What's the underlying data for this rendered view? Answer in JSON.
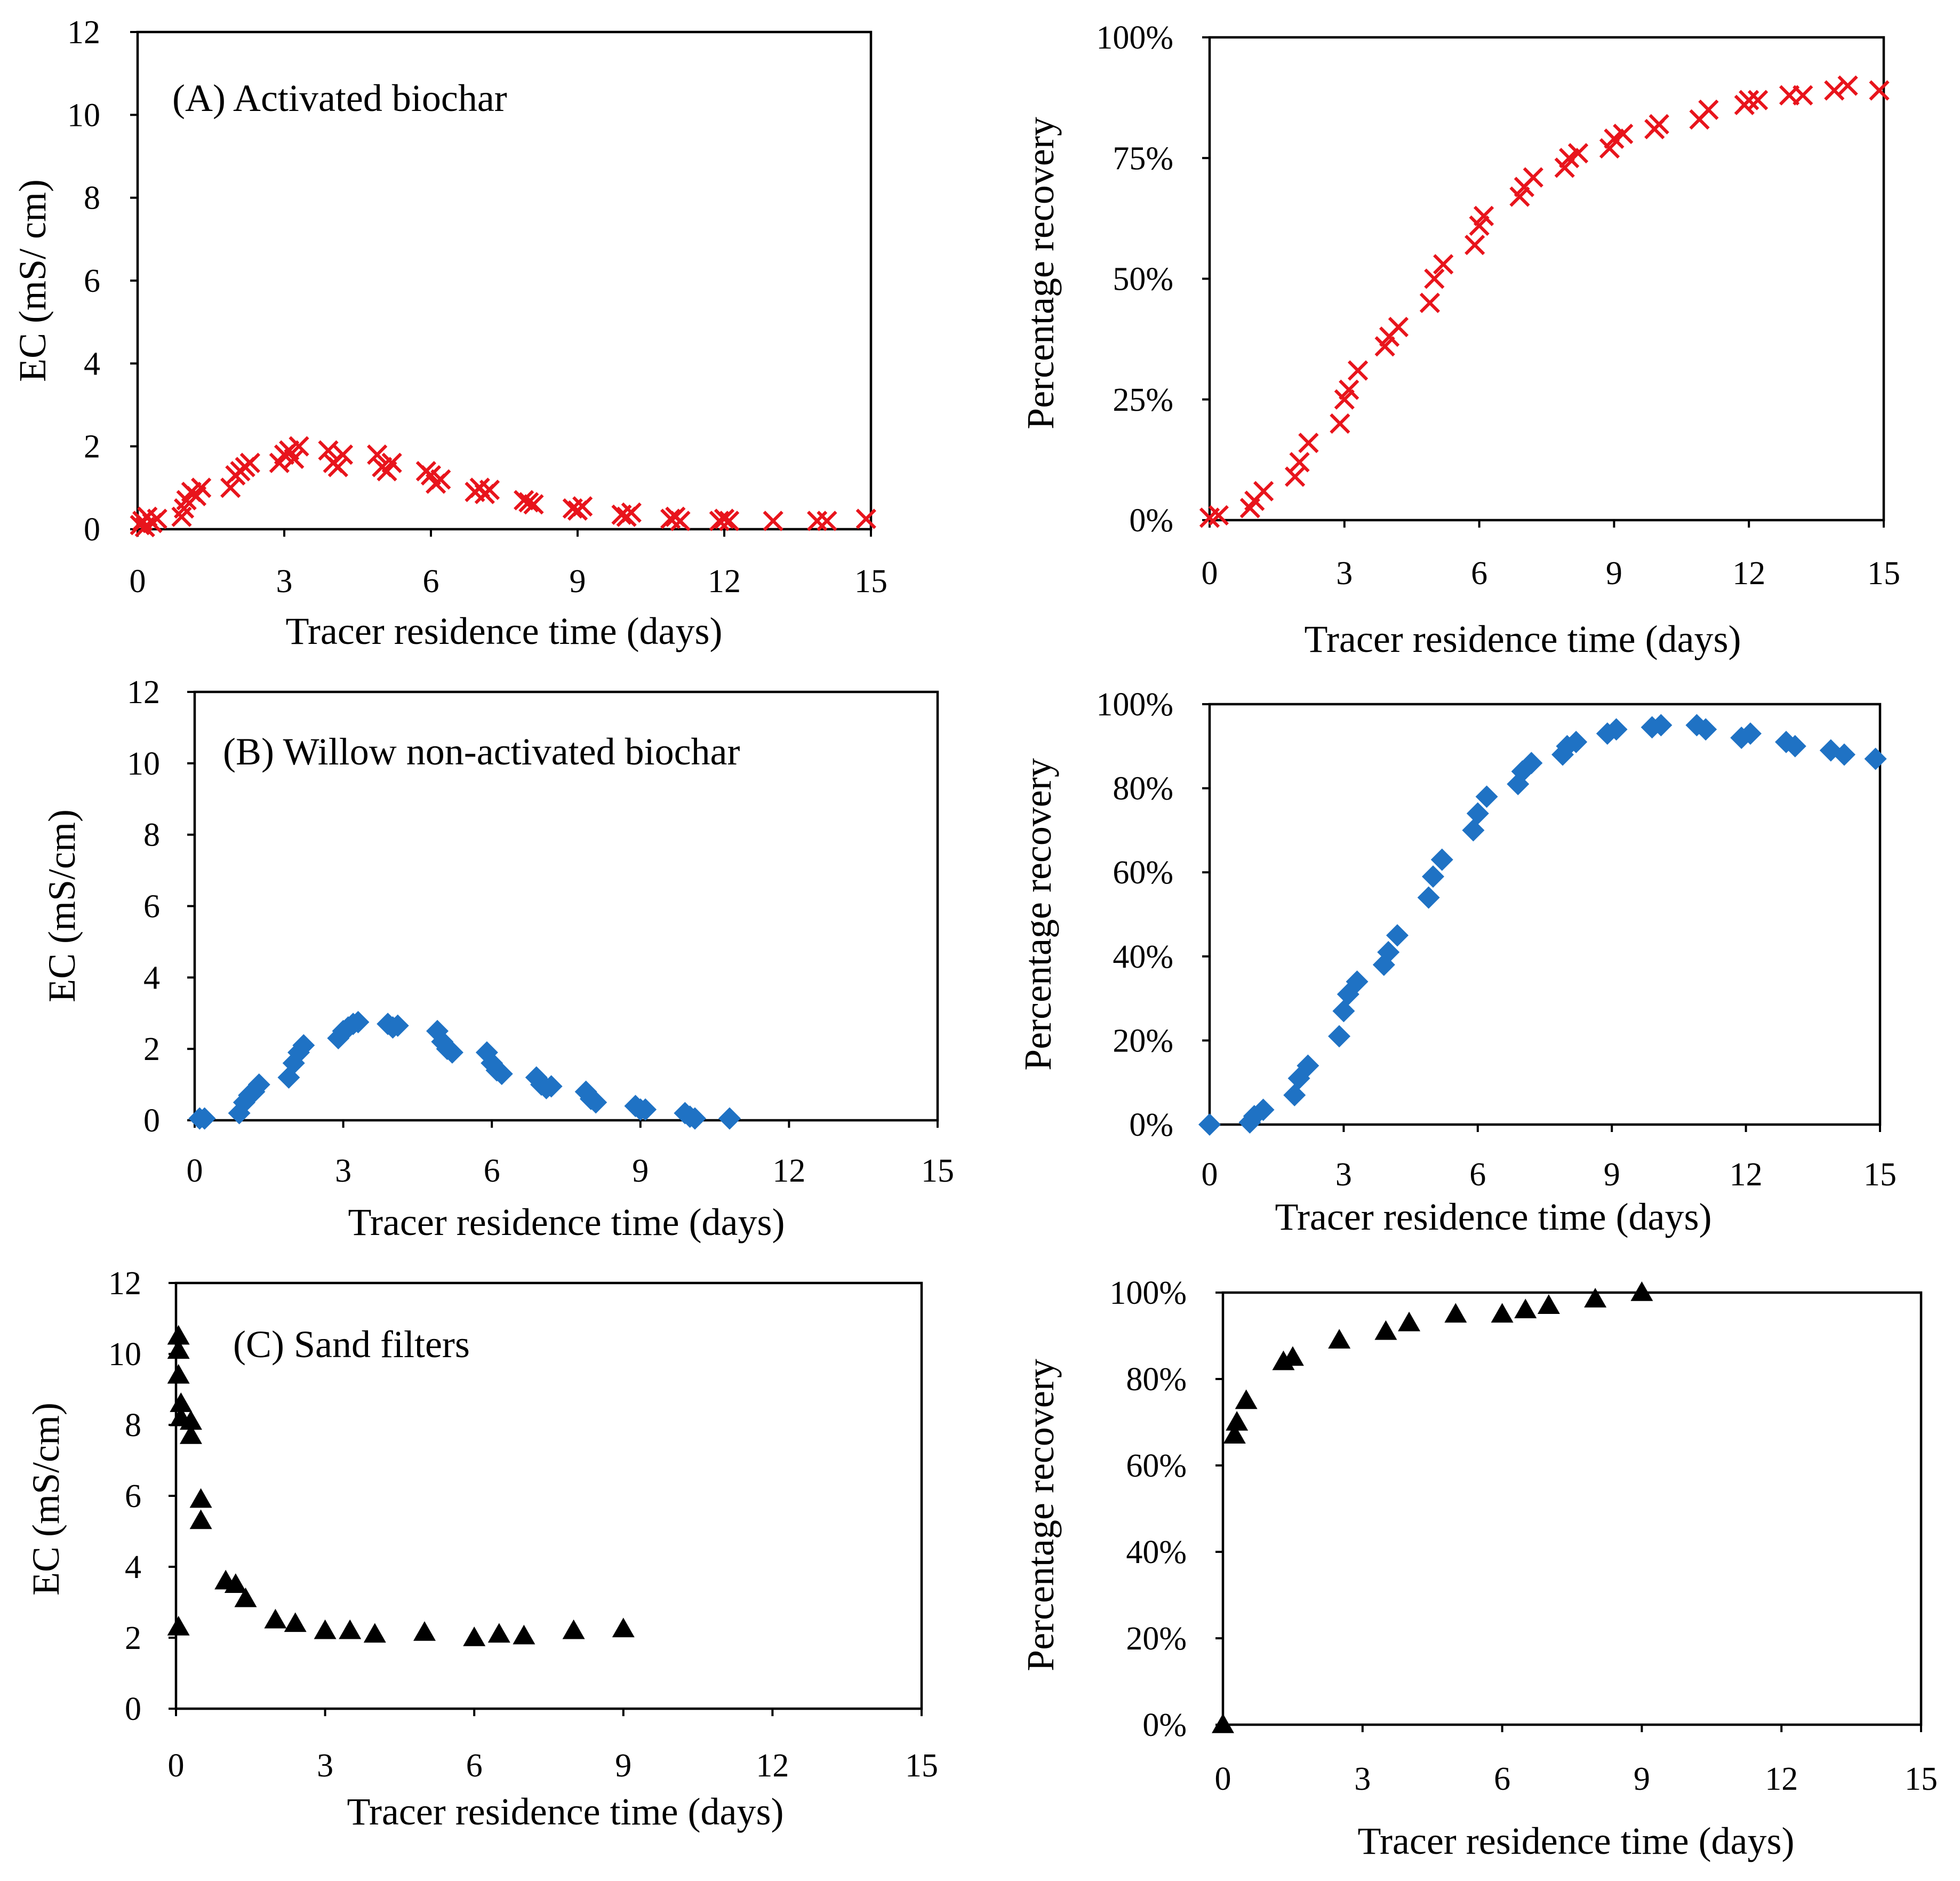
{
  "colors": {
    "red_x": "#e8141c",
    "blue_diamond": "#1f72c4",
    "black_triangle": "#000000"
  },
  "chart_data": [
    {
      "id": "A-ec",
      "type": "scatter",
      "marker": "x-icon",
      "color": "#e8141c",
      "title": "(A) Activated biochar",
      "xlabel": "Tracer residence time (days)",
      "ylabel": "EC (mS/ cm)",
      "xlim": [
        0,
        15
      ],
      "ylim": [
        0,
        12
      ],
      "xticks": [
        "0",
        "3",
        "6",
        "9",
        "12",
        "15"
      ],
      "yticks": [
        "0",
        "2",
        "4",
        "6",
        "8",
        "10",
        "12"
      ],
      "x": [
        0.05,
        0.1,
        0.15,
        0.2,
        0.3,
        0.4,
        0.9,
        0.95,
        1.0,
        1.1,
        1.2,
        1.3,
        1.9,
        2.0,
        2.1,
        2.2,
        2.3,
        2.9,
        3.0,
        3.1,
        3.2,
        3.3,
        3.9,
        4.0,
        4.1,
        4.2,
        4.9,
        5.0,
        5.1,
        5.2,
        5.9,
        6.0,
        6.1,
        6.2,
        6.9,
        7.0,
        7.1,
        7.2,
        7.9,
        8.0,
        8.1,
        8.9,
        9.0,
        9.1,
        9.9,
        10.0,
        10.1,
        10.9,
        11.0,
        11.1,
        11.9,
        12.0,
        12.1,
        13.0,
        13.9,
        14.1,
        14.9
      ],
      "y": [
        0.1,
        0.2,
        0.05,
        0.3,
        0.15,
        0.25,
        0.3,
        0.5,
        0.7,
        0.9,
        0.8,
        1.0,
        1.0,
        1.3,
        1.4,
        1.5,
        1.6,
        1.6,
        1.8,
        1.9,
        1.7,
        2.0,
        1.9,
        1.6,
        1.5,
        1.8,
        1.8,
        1.5,
        1.4,
        1.6,
        1.4,
        1.3,
        1.1,
        1.2,
        0.9,
        1.0,
        0.85,
        0.95,
        0.7,
        0.65,
        0.6,
        0.5,
        0.45,
        0.55,
        0.35,
        0.3,
        0.4,
        0.25,
        0.3,
        0.2,
        0.2,
        0.25,
        0.2,
        0.2,
        0.2,
        0.2,
        0.25
      ]
    },
    {
      "id": "A-rec",
      "type": "scatter",
      "marker": "x-icon",
      "color": "#e8141c",
      "title": "",
      "xlabel": "Tracer residence time (days)",
      "ylabel": "Percentage recovery",
      "xlim": [
        0,
        15
      ],
      "ylim": [
        0,
        100
      ],
      "xticks": [
        "0",
        "3",
        "6",
        "9",
        "12",
        "15"
      ],
      "yticks": [
        "0%",
        "25%",
        "50%",
        "75%",
        "100%"
      ],
      "x": [
        0,
        0.2,
        0.9,
        1.0,
        1.2,
        1.9,
        2.0,
        2.2,
        2.9,
        3.0,
        3.1,
        3.3,
        3.9,
        4.0,
        4.2,
        4.9,
        5.0,
        5.2,
        5.9,
        6.0,
        6.1,
        6.9,
        7.0,
        7.2,
        7.9,
        8.0,
        8.2,
        8.9,
        9.0,
        9.2,
        9.9,
        10.0,
        10.9,
        11.1,
        11.9,
        12.0,
        12.2,
        12.9,
        13.2,
        13.9,
        14.2,
        14.9
      ],
      "y": [
        0.5,
        1,
        2.5,
        4,
        6,
        9,
        12,
        16,
        20,
        25,
        27,
        31,
        36,
        38,
        40,
        45,
        50,
        53,
        57,
        61,
        63,
        67,
        69,
        71,
        73,
        75,
        76,
        77,
        79,
        80,
        81,
        82,
        83,
        85,
        86,
        87,
        87,
        88,
        88,
        89,
        90,
        89
      ]
    },
    {
      "id": "B-ec",
      "type": "scatter",
      "marker": "diamond-icon",
      "color": "#1f72c4",
      "title": "(B) Willow non-activated biochar",
      "xlabel": "Tracer residence time (days)",
      "ylabel": "EC (mS/cm)",
      "xlim": [
        0,
        15
      ],
      "ylim": [
        0,
        12
      ],
      "xticks": [
        "0",
        "3",
        "6",
        "9",
        "12",
        "15"
      ],
      "yticks": [
        "0",
        "2",
        "4",
        "6",
        "8",
        "10",
        "12"
      ],
      "x": [
        0.1,
        0.2,
        0.9,
        1.0,
        1.1,
        1.2,
        1.3,
        1.9,
        2.0,
        2.1,
        2.2,
        2.9,
        3.0,
        3.1,
        3.2,
        3.3,
        3.9,
        4.0,
        4.1,
        4.9,
        5.0,
        5.1,
        5.2,
        5.9,
        6.0,
        6.1,
        6.2,
        6.9,
        7.0,
        7.1,
        7.2,
        7.9,
        8.0,
        8.1,
        8.9,
        9.0,
        9.1,
        9.9,
        10.0,
        10.1,
        10.8
      ],
      "y": [
        0.05,
        0.05,
        0.2,
        0.5,
        0.7,
        0.8,
        1.0,
        1.2,
        1.6,
        1.9,
        2.1,
        2.3,
        2.5,
        2.6,
        2.7,
        2.75,
        2.7,
        2.6,
        2.65,
        2.5,
        2.2,
        2.0,
        1.9,
        1.9,
        1.6,
        1.4,
        1.3,
        1.2,
        1.0,
        0.9,
        0.95,
        0.8,
        0.6,
        0.5,
        0.4,
        0.3,
        0.3,
        0.2,
        0.1,
        0.05,
        0.05
      ]
    },
    {
      "id": "B-rec",
      "type": "scatter",
      "marker": "diamond-icon",
      "color": "#1f72c4",
      "title": "",
      "xlabel": "Tracer residence time (days)",
      "ylabel": "Percentage recovery",
      "xlim": [
        0,
        15
      ],
      "ylim": [
        0,
        100
      ],
      "xticks": [
        "0",
        "3",
        "6",
        "9",
        "12",
        "15"
      ],
      "yticks": [
        "0%",
        "20%",
        "40%",
        "60%",
        "80%",
        "100%"
      ],
      "x": [
        0,
        0.9,
        1.0,
        1.2,
        1.9,
        2.0,
        2.2,
        2.9,
        3.0,
        3.1,
        3.3,
        3.9,
        4.0,
        4.2,
        4.9,
        5.0,
        5.2,
        5.9,
        6.0,
        6.2,
        6.9,
        7.0,
        7.2,
        7.9,
        8.0,
        8.2,
        8.9,
        9.1,
        9.9,
        10.1,
        10.9,
        11.1,
        11.9,
        12.1,
        12.9,
        13.1,
        13.9,
        14.2,
        14.9
      ],
      "y": [
        0,
        0.5,
        2,
        3.5,
        7,
        11,
        14,
        21,
        27,
        31,
        34,
        38,
        41,
        45,
        54,
        59,
        63,
        70,
        74,
        78,
        81,
        84,
        86,
        88,
        90,
        91,
        93,
        94,
        94.5,
        95,
        95,
        94,
        92,
        93,
        91,
        90,
        89,
        88,
        87
      ]
    },
    {
      "id": "C-ec",
      "type": "scatter",
      "marker": "triangle-icon",
      "color": "#000000",
      "title": "(C) Sand filters",
      "xlabel": "Tracer residence time (days)",
      "ylabel": "EC (mS/cm)",
      "xlim": [
        0,
        15
      ],
      "ylim": [
        0,
        12
      ],
      "xticks": [
        "0",
        "3",
        "6",
        "9",
        "12",
        "15"
      ],
      "yticks": [
        "0",
        "2",
        "4",
        "6",
        "8",
        "10",
        "12"
      ],
      "x": [
        0.05,
        0.05,
        0.05,
        0.05,
        0.1,
        0.1,
        0.3,
        0.3,
        0.5,
        0.5,
        1.0,
        1.2,
        1.4,
        2.0,
        2.4,
        3.0,
        3.5,
        4.0,
        5.0,
        6.0,
        6.5,
        7.0,
        8.0,
        9.0
      ],
      "y": [
        2.3,
        10.5,
        10.1,
        9.4,
        8.6,
        8.2,
        7.7,
        8.1,
        5.3,
        5.9,
        3.6,
        3.5,
        3.1,
        2.5,
        2.4,
        2.2,
        2.2,
        2.1,
        2.15,
        2.0,
        2.1,
        2.05,
        2.2,
        2.25
      ]
    },
    {
      "id": "C-rec",
      "type": "scatter",
      "marker": "triangle-icon",
      "color": "#000000",
      "title": "",
      "xlabel": "Tracer residence time (days)",
      "ylabel": "Percentage recovery",
      "xlim": [
        0,
        15
      ],
      "ylim": [
        0,
        100
      ],
      "xticks": [
        "0",
        "3",
        "6",
        "9",
        "12",
        "15"
      ],
      "yticks": [
        "0%",
        "20%",
        "40%",
        "60%",
        "80%",
        "100%"
      ],
      "x": [
        0,
        0.25,
        0.3,
        0.5,
        1.3,
        1.5,
        2.5,
        3.5,
        4.0,
        5.0,
        6.0,
        6.5,
        7.0,
        8.0,
        9.0
      ],
      "y": [
        0,
        67,
        70,
        75,
        84,
        85,
        89,
        91,
        93,
        95,
        95,
        96,
        97,
        98.5,
        100
      ]
    }
  ]
}
